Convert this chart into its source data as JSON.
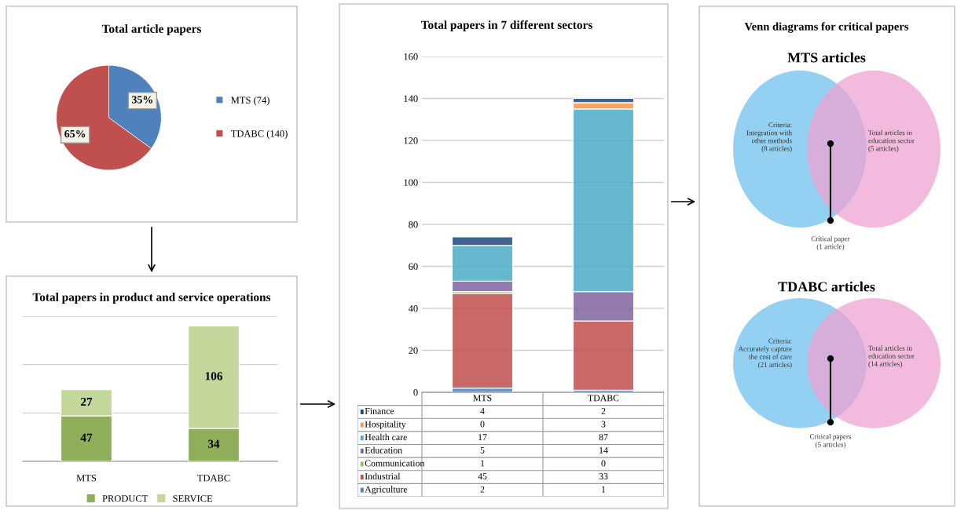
{
  "chart_data": [
    {
      "type": "pie",
      "title": "Total article papers",
      "categories": [
        "MTS (74)",
        "TDABC (140)"
      ],
      "values": [
        35,
        65
      ],
      "value_labels": [
        "35%",
        "65%"
      ],
      "colors": [
        "#4f81bd",
        "#c0504d"
      ],
      "legend": "right"
    },
    {
      "type": "bar",
      "title": "Total papers in product and service operations",
      "categories": [
        "MTS",
        "TDABC"
      ],
      "stacked": true,
      "data_labels": true,
      "legend": "bottom",
      "grid": "y",
      "tick_labels": "x",
      "ylim": [
        0,
        150
      ],
      "yticks": [
        {
          "value": 0,
          "label": null
        },
        {
          "value": 50,
          "label": null
        },
        {
          "value": 100,
          "label": null
        },
        {
          "value": 150,
          "label": null
        }
      ],
      "series": [
        {
          "name": "PRODUCT",
          "color": "#8fae5a",
          "values": [
            47,
            34
          ]
        },
        {
          "name": "SERVICE",
          "color": "#c4d79b",
          "values": [
            27,
            106
          ]
        }
      ]
    },
    {
      "type": "bar",
      "title": "Total papers in 7 different sectors",
      "categories": [
        "MTS",
        "TDABC"
      ],
      "stacked": true,
      "data_labels": true,
      "legend": "bottom",
      "grid": "y",
      "ylim": [
        0,
        160
      ],
      "yticks": [
        0,
        20,
        40,
        60,
        80,
        100,
        120,
        140,
        160
      ],
      "series": [
        {
          "name": "Agriculture",
          "color": "#4f81bd",
          "values": [
            2,
            1
          ]
        },
        {
          "name": "Industrial",
          "color": "#c0504d",
          "values": [
            45,
            33
          ]
        },
        {
          "name": "Communication",
          "color": "#9bbb59",
          "values": [
            1,
            0
          ]
        },
        {
          "name": "Education",
          "color": "#8064a2",
          "values": [
            5,
            14
          ]
        },
        {
          "name": "Health care",
          "color": "#4bacc6",
          "values": [
            17,
            87
          ]
        },
        {
          "name": "Hospitality",
          "color": "#f79646",
          "values": [
            0,
            3
          ]
        },
        {
          "name": "Finance",
          "color": "#1f497d",
          "values": [
            4,
            2
          ]
        }
      ]
    },
    {
      "type": "other",
      "title": "Venn diagrams for critical papers",
      "subtitle": "MTS articles",
      "colors": [
        "#8ecdf0",
        "#eea3d0"
      ],
      "annotations": [
        "Criteria:\nIntegration with\nother methods\n(8 articles)",
        "Total articles in\neducation sector\n(5 articles)",
        "Critical paper\n(1 article)"
      ]
    },
    {
      "type": "other",
      "title": "TDABC articles",
      "colors": [
        "#8ecdf0",
        "#eea3d0"
      ],
      "annotations": [
        "Criteria:\nAccurately capture\nthe cost of care\n(21 articles)",
        "Total articles in\neducation sector\n(14 articles)",
        "Critical papers\n(5 articles)"
      ]
    }
  ]
}
